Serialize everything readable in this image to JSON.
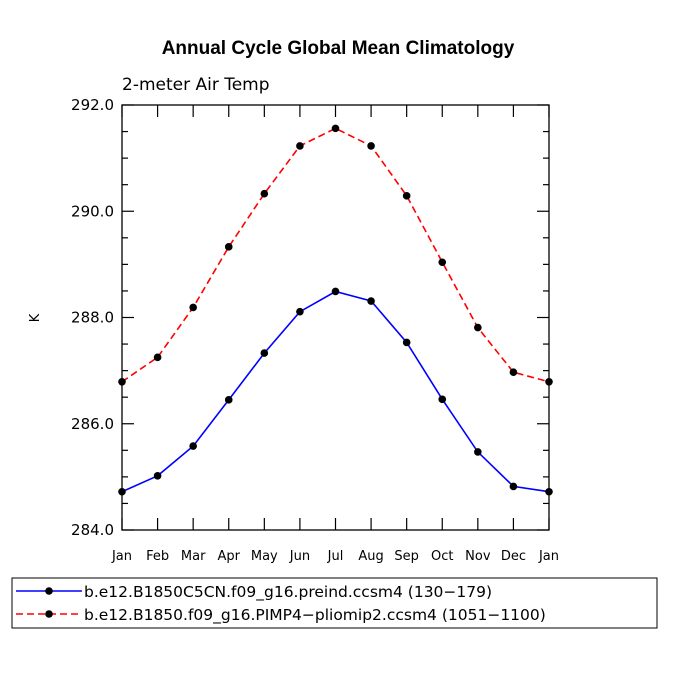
{
  "chart_data": {
    "type": "line",
    "title": "Annual Cycle Global Mean Climatology",
    "subtitle": "2-meter Air Temp",
    "xlabel": "",
    "ylabel": "K",
    "categories": [
      "Jan",
      "Feb",
      "Mar",
      "Apr",
      "May",
      "Jun",
      "Jul",
      "Aug",
      "Sep",
      "Oct",
      "Nov",
      "Dec",
      "Jan"
    ],
    "ylim": [
      284.0,
      292.0
    ],
    "yticks": [
      284.0,
      286.0,
      288.0,
      290.0,
      292.0
    ],
    "ytick_labels": [
      "284.0",
      "286.0",
      "288.0",
      "290.0",
      "292.0"
    ],
    "series": [
      {
        "name": "b.e12.B1850C5CN.f09_g16.preind.ccsm4 (130−179)",
        "color": "#0000ff",
        "linestyle": "solid",
        "values": [
          284.72,
          285.02,
          285.58,
          286.45,
          287.33,
          288.11,
          288.49,
          288.31,
          287.53,
          286.46,
          285.47,
          284.82,
          284.72
        ]
      },
      {
        "name": "b.e12.B1850.f09_g16.PIMP4−pliomip2.ccsm4 (1051−1100)",
        "color": "#ff0000",
        "linestyle": "dashed",
        "values": [
          286.79,
          287.25,
          288.19,
          289.33,
          290.33,
          291.23,
          291.56,
          291.23,
          290.29,
          289.04,
          287.81,
          286.97,
          286.79
        ]
      }
    ],
    "legend_position": "bottom"
  }
}
